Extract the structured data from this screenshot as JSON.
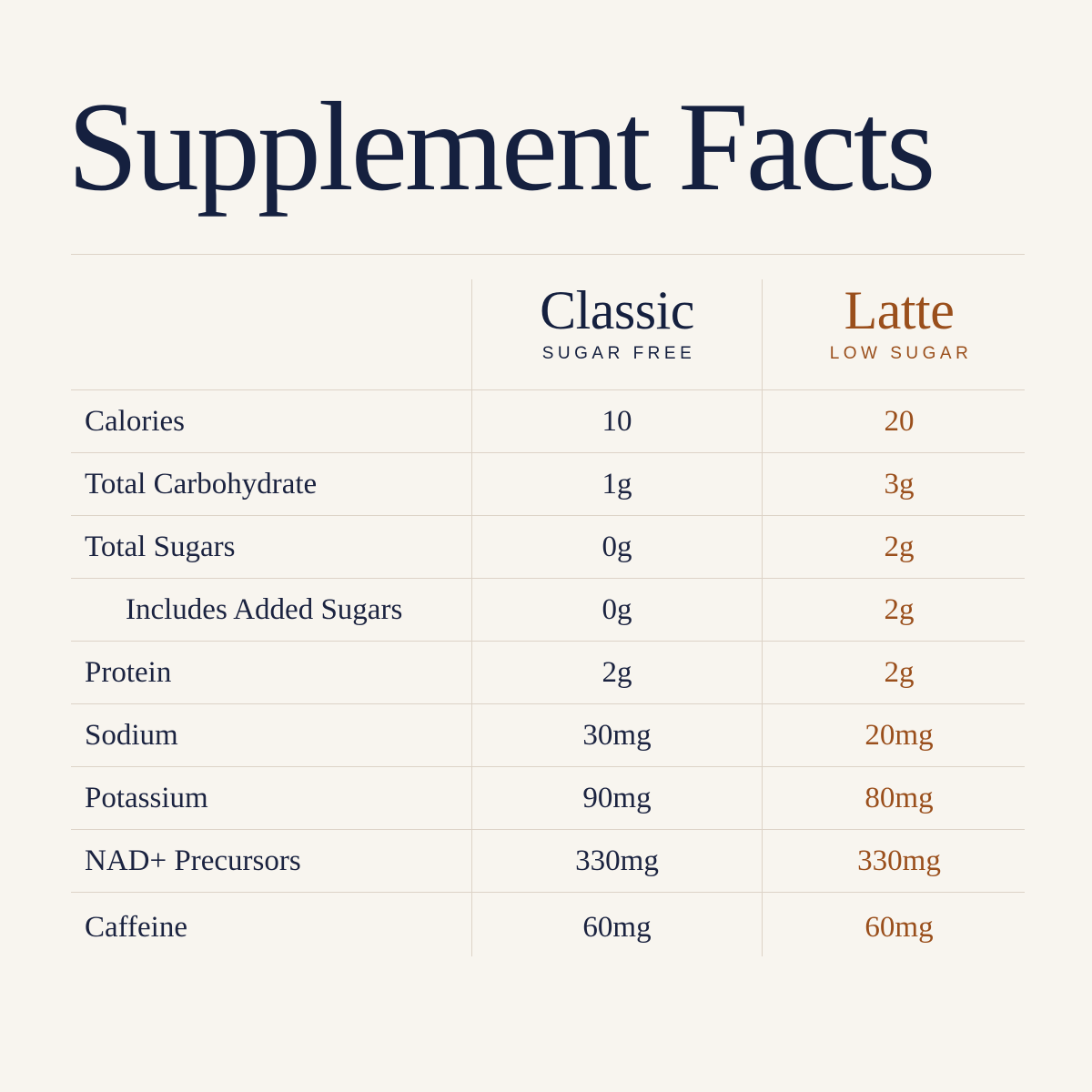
{
  "title": "Supplement Facts",
  "columns": {
    "classic": {
      "name": "Classic",
      "subtitle": "SUGAR FREE",
      "color": "#15203f"
    },
    "latte": {
      "name": "Latte",
      "subtitle": "LOW SUGAR",
      "color": "#9a4f1c"
    }
  },
  "rows": [
    {
      "label": "Calories",
      "classic": "10",
      "latte": "20"
    },
    {
      "label": "Total Carbohydrate",
      "classic": "1g",
      "latte": "3g"
    },
    {
      "label": "Total Sugars",
      "classic": "0g",
      "latte": "2g"
    },
    {
      "label": "Includes Added Sugars",
      "classic": "0g",
      "latte": "2g"
    },
    {
      "label": "Protein",
      "classic": "2g",
      "latte": "2g"
    },
    {
      "label": "Sodium",
      "classic": "30mg",
      "latte": "20mg"
    },
    {
      "label": "Potassium",
      "classic": "90mg",
      "latte": "80mg"
    },
    {
      "label": "NAD+ Precursors",
      "classic": "330mg",
      "latte": "330mg"
    },
    {
      "label": "Caffeine",
      "classic": "60mg",
      "latte": "60mg"
    }
  ]
}
